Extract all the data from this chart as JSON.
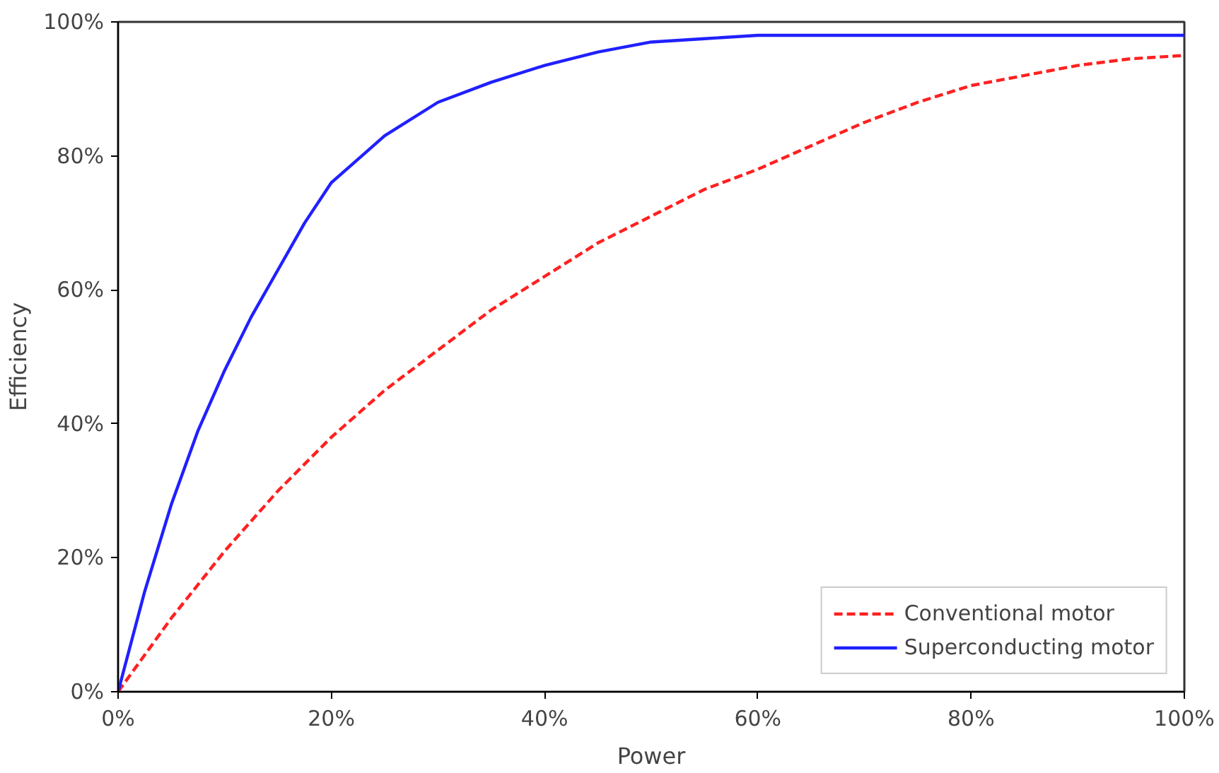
{
  "chart_data": {
    "type": "line",
    "xlabel": "Power",
    "ylabel": "Efficiency",
    "xlim": [
      0,
      100
    ],
    "ylim": [
      0,
      100
    ],
    "xticks": [
      {
        "value": 0,
        "label": "0%"
      },
      {
        "value": 20,
        "label": "20%"
      },
      {
        "value": 40,
        "label": "40%"
      },
      {
        "value": 60,
        "label": "60%"
      },
      {
        "value": 80,
        "label": "80%"
      },
      {
        "value": 100,
        "label": "100%"
      }
    ],
    "yticks": [
      {
        "value": 0,
        "label": "0%"
      },
      {
        "value": 20,
        "label": "20%"
      },
      {
        "value": 40,
        "label": "40%"
      },
      {
        "value": 60,
        "label": "60%"
      },
      {
        "value": 80,
        "label": "80%"
      },
      {
        "value": 100,
        "label": "100%"
      }
    ],
    "legend": "bottom right",
    "grid": false,
    "series": [
      {
        "name": "Conventional motor",
        "color": "#ff2020",
        "line_style": "dashed",
        "x": [
          0,
          5,
          10,
          15,
          20,
          25,
          30,
          35,
          40,
          45,
          50,
          55,
          60,
          65,
          70,
          75,
          80,
          85,
          90,
          95,
          100
        ],
        "values": [
          0,
          11,
          21,
          30,
          38,
          45,
          51,
          57,
          62,
          67,
          71,
          75,
          78,
          81.5,
          85,
          88,
          90.5,
          92,
          93.5,
          94.5,
          95
        ]
      },
      {
        "name": "Superconducting motor",
        "color": "#2020ff",
        "line_style": "solid",
        "x": [
          0,
          2.5,
          5,
          7.5,
          10,
          12.5,
          15,
          17.5,
          20,
          25,
          30,
          35,
          40,
          45,
          50,
          55,
          60,
          70,
          80,
          90,
          100
        ],
        "values": [
          0,
          15,
          28,
          39,
          48,
          56,
          63,
          70,
          76,
          83,
          88,
          91,
          93.5,
          95.5,
          97,
          97.5,
          98,
          98,
          98,
          98,
          98
        ]
      }
    ]
  }
}
